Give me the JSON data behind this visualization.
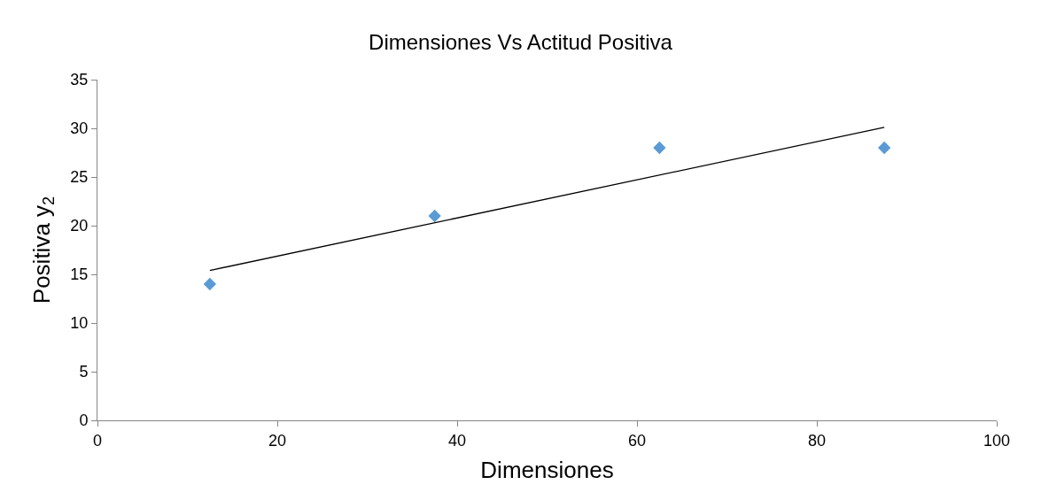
{
  "chart_data": {
    "type": "scatter",
    "title": "Dimensiones Vs Actitud Positiva",
    "xlabel": "Dimensiones",
    "ylabel": "Positiva y$_{2}$",
    "x": [
      12.5,
      37.5,
      62.5,
      87.5
    ],
    "series": [
      {
        "color": "#5b9bd5",
        "marker": "diamond",
        "values": [
          14,
          21,
          28,
          28
        ]
      },
      {
        "type": "line",
        "color": "#000000",
        "x": [
          12.5,
          87.5
        ],
        "values": [
          15.4,
          30.1
        ],
        "line_style": "solid"
      }
    ],
    "xlim": [
      0,
      100
    ],
    "xticks": [
      0,
      20,
      40,
      60,
      80,
      100
    ],
    "ylim": [
      0,
      35
    ],
    "yticks": [
      0,
      5,
      10,
      15,
      20,
      25,
      30,
      35
    ],
    "legend": false
  }
}
